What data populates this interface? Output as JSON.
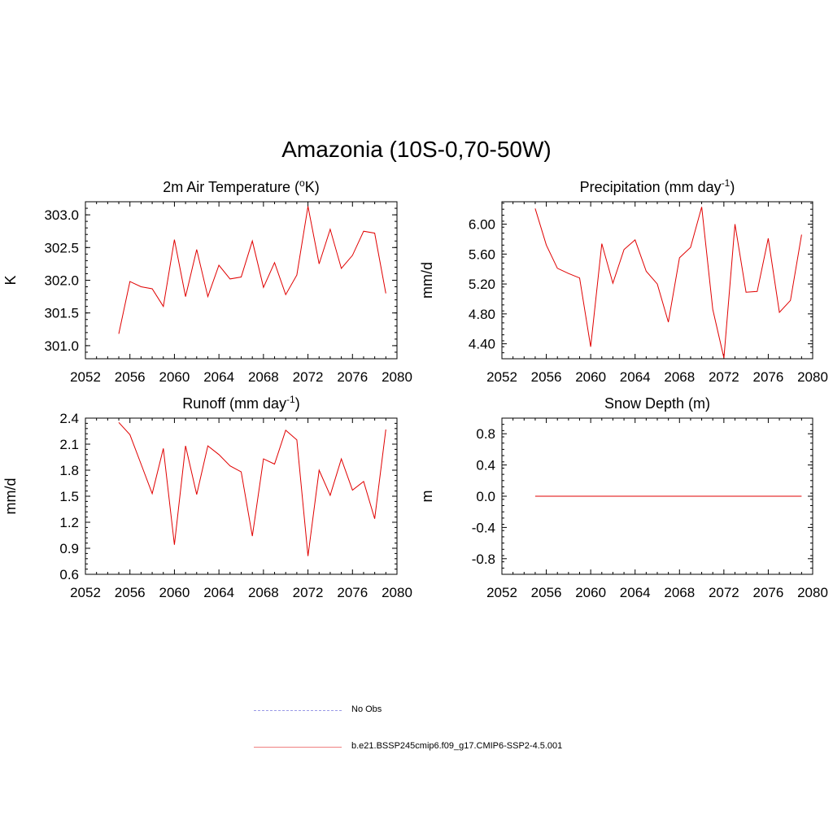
{
  "figure_title": "Amazonia (10S-0,70-50W)",
  "colors": {
    "model_line": "#e00000",
    "obs_line": "#9a9ae6",
    "axis": "#000000"
  },
  "legend": {
    "obs_label": "No Obs",
    "model_label": "b.e21.BSSP245cmip6.f09_g17.CMIP6-SSP2-4.5.001"
  },
  "chart_data": [
    {
      "type": "line",
      "title_main": "2m Air Temperature (",
      "title_sup1": "o",
      "title_after": "K)",
      "title_sup2": "",
      "title_end": "",
      "ylabel": "K",
      "xlim": [
        2052,
        2080
      ],
      "ylim": [
        300.8,
        303.2
      ],
      "xticks": [
        "2052",
        "2056",
        "2060",
        "2064",
        "2068",
        "2072",
        "2076",
        "2080"
      ],
      "yticks": [
        "301.0",
        "301.5",
        "302.0",
        "302.5",
        "303.0"
      ],
      "x": [
        2055,
        2056,
        2057,
        2058,
        2059,
        2060,
        2061,
        2062,
        2063,
        2064,
        2065,
        2066,
        2067,
        2068,
        2069,
        2070,
        2071,
        2072,
        2073,
        2074,
        2075,
        2076,
        2077,
        2078,
        2079
      ],
      "series": [
        {
          "values": [
            301.18,
            301.98,
            301.9,
            301.87,
            301.6,
            302.62,
            301.75,
            302.47,
            301.75,
            302.23,
            302.02,
            302.05,
            302.6,
            301.89,
            302.27,
            301.78,
            302.08,
            303.13,
            302.25,
            302.78,
            302.18,
            302.38,
            302.75,
            302.72,
            301.8
          ]
        }
      ]
    },
    {
      "type": "line",
      "title_main": "Precipitation (mm day",
      "title_sup1": "-1",
      "title_after": ")",
      "title_sup2": "",
      "title_end": "",
      "ylabel": "mm/d",
      "xlim": [
        2052,
        2080
      ],
      "ylim": [
        4.2,
        6.3
      ],
      "xticks": [
        "2052",
        "2056",
        "2060",
        "2064",
        "2068",
        "2072",
        "2076",
        "2080"
      ],
      "yticks": [
        "4.40",
        "4.80",
        "5.20",
        "5.60",
        "6.00"
      ],
      "x": [
        2055,
        2056,
        2057,
        2058,
        2059,
        2060,
        2061,
        2062,
        2063,
        2064,
        2065,
        2066,
        2067,
        2068,
        2069,
        2070,
        2071,
        2072,
        2073,
        2074,
        2075,
        2076,
        2077,
        2078,
        2079
      ],
      "series": [
        {
          "values": [
            6.21,
            5.72,
            5.41,
            5.34,
            5.28,
            4.36,
            5.74,
            5.21,
            5.66,
            5.79,
            5.37,
            5.2,
            4.69,
            5.55,
            5.69,
            6.23,
            4.86,
            4.21,
            6.0,
            5.09,
            5.1,
            5.81,
            4.82,
            4.98,
            5.86
          ]
        }
      ]
    },
    {
      "type": "line",
      "title_main": "Runoff (mm day",
      "title_sup1": "-1",
      "title_after": ")",
      "title_sup2": "",
      "title_end": "",
      "ylabel": "mm/d",
      "xlim": [
        2052,
        2080
      ],
      "ylim": [
        0.6,
        2.4
      ],
      "xticks": [
        "2052",
        "2056",
        "2060",
        "2064",
        "2068",
        "2072",
        "2076",
        "2080"
      ],
      "yticks": [
        "0.6",
        "0.9",
        "1.2",
        "1.5",
        "1.8",
        "2.1",
        "2.4"
      ],
      "x": [
        2055,
        2056,
        2057,
        2058,
        2059,
        2060,
        2061,
        2062,
        2063,
        2064,
        2065,
        2066,
        2067,
        2068,
        2069,
        2070,
        2071,
        2072,
        2073,
        2074,
        2075,
        2076,
        2077,
        2078,
        2079
      ],
      "series": [
        {
          "values": [
            2.35,
            2.21,
            1.87,
            1.53,
            2.05,
            0.94,
            2.08,
            1.52,
            2.08,
            1.98,
            1.85,
            1.78,
            1.04,
            1.93,
            1.87,
            2.26,
            2.15,
            0.81,
            1.8,
            1.51,
            1.93,
            1.57,
            1.67,
            1.24,
            2.27
          ]
        }
      ]
    },
    {
      "type": "line",
      "title_main": "Snow Depth (m)",
      "title_sup1": "",
      "title_after": "",
      "title_sup2": "",
      "title_end": "",
      "ylabel": "m",
      "xlim": [
        2052,
        2080
      ],
      "ylim": [
        -1.0,
        1.0
      ],
      "xticks": [
        "2052",
        "2056",
        "2060",
        "2064",
        "2068",
        "2072",
        "2076",
        "2080"
      ],
      "yticks": [
        "-0.8",
        "-0.4",
        "0.0",
        "0.4",
        "0.8"
      ],
      "x": [
        2055,
        2056,
        2057,
        2058,
        2059,
        2060,
        2061,
        2062,
        2063,
        2064,
        2065,
        2066,
        2067,
        2068,
        2069,
        2070,
        2071,
        2072,
        2073,
        2074,
        2075,
        2076,
        2077,
        2078,
        2079
      ],
      "series": [
        {
          "values": [
            0,
            0,
            0,
            0,
            0,
            0,
            0,
            0,
            0,
            0,
            0,
            0,
            0,
            0,
            0,
            0,
            0,
            0,
            0,
            0,
            0,
            0,
            0,
            0,
            0
          ]
        }
      ]
    }
  ]
}
